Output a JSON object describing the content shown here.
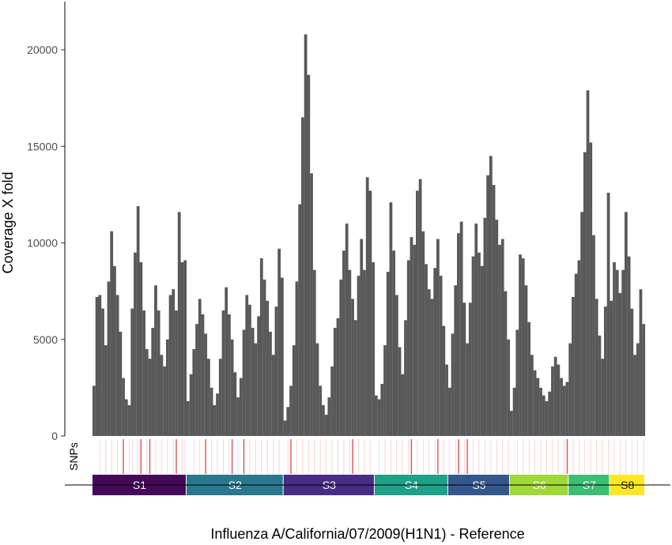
{
  "chart_data": {
    "type": "bar",
    "title": "",
    "xlabel": "Influenza A/California/07/2009(H1N1) - Reference",
    "ylabel": "Coverage X fold",
    "ylim": [
      0,
      22000
    ],
    "yticks": [
      0,
      5000,
      10000,
      15000,
      20000
    ],
    "snp_track_label": "SNPs",
    "bar_color": "#595959",
    "snp_color": "#f08080",
    "segments": [
      {
        "name": "S1",
        "color": "#440a59",
        "bin_start": 0,
        "bin_end": 32,
        "coverage": [
          2600,
          7200,
          7300,
          6600,
          4700,
          8000,
          10600,
          8800,
          7300,
          5400,
          3000,
          1900,
          1600,
          6600,
          9500,
          11900,
          9000,
          6500,
          4500,
          4000,
          5600,
          7800,
          6500,
          4200,
          3600,
          5000,
          7300,
          7600,
          6500,
          11600,
          9000,
          9100
        ]
      },
      {
        "name": "S2",
        "color": "#2a788e",
        "bin_start": 32,
        "bin_end": 65,
        "coverage": [
          1800,
          3200,
          4500,
          5800,
          7100,
          6300,
          5300,
          4000,
          2500,
          1600,
          2200,
          4000,
          6500,
          7700,
          6300,
          5000,
          3300,
          2000,
          3000,
          5500,
          7300,
          6800,
          5600,
          4800,
          6200,
          9200,
          8100,
          7000,
          5400,
          4200,
          6700,
          9700,
          8200
        ]
      },
      {
        "name": "S3",
        "color": "#482d84",
        "bin_start": 65,
        "bin_end": 96,
        "coverage": [
          800,
          1500,
          2600,
          4700,
          8000,
          12000,
          16500,
          20800,
          18700,
          13600,
          8600,
          4800,
          2600,
          1600,
          1100,
          2000,
          3600,
          5600,
          6100,
          8100,
          9600,
          11000,
          8600,
          7100,
          6000,
          8300,
          10200,
          8600,
          13400,
          12700,
          9000
        ]
      },
      {
        "name": "S4",
        "color": "#1fa088",
        "bin_start": 96,
        "bin_end": 121,
        "coverage": [
          2100,
          1900,
          2700,
          4700,
          8500,
          12100,
          9600,
          7300,
          4600,
          3200,
          6000,
          9100,
          10300,
          9900,
          12700,
          13300,
          10600,
          8900,
          7600,
          7100,
          8700,
          10200,
          8300,
          5700,
          3700
        ]
      },
      {
        "name": "S5",
        "color": "#34588c",
        "bin_start": 121,
        "bin_end": 142,
        "coverage": [
          2500,
          5300,
          7800,
          10500,
          11100,
          6900,
          4800,
          6900,
          9300,
          11000,
          9500,
          8800,
          11300,
          13500,
          14500,
          13000,
          11200,
          9900,
          10200,
          7500,
          5000
        ]
      },
      {
        "name": "S6",
        "color": "#9fd838",
        "bin_start": 142,
        "bin_end": 162,
        "coverage": [
          1300,
          2500,
          5500,
          9400,
          9200,
          7800,
          5900,
          4200,
          3400,
          3000,
          2500,
          2100,
          1800,
          2300,
          3600,
          4100,
          3700,
          3000,
          2600,
          2800
        ]
      },
      {
        "name": "S7",
        "color": "#3dbc74",
        "bin_start": 162,
        "bin_end": 176,
        "coverage": [
          4800,
          7200,
          8400,
          9100,
          11600,
          14700,
          17900,
          15200,
          10400,
          7100,
          5200,
          4000,
          6700,
          12600
        ]
      },
      {
        "name": "S8",
        "color": "#fde724",
        "bin_start": 176,
        "bin_end": 188,
        "coverage": [
          7000,
          9000,
          8600,
          7400,
          8600,
          11600,
          9300,
          6600,
          4200,
          4800,
          7600,
          5800
        ]
      }
    ],
    "snp_positions_major": [
      10,
      16,
      19,
      28,
      38,
      47,
      51,
      67,
      88,
      108,
      117,
      124,
      127,
      161
    ],
    "snp_positions_minor": [
      2,
      4,
      6,
      8,
      12,
      13,
      15,
      18,
      21,
      23,
      25,
      27,
      30,
      31,
      34,
      36,
      40,
      42,
      44,
      46,
      49,
      53,
      55,
      57,
      59,
      61,
      63,
      66,
      69,
      71,
      73,
      75,
      77,
      79,
      81,
      83,
      85,
      87,
      90,
      92,
      94,
      97,
      99,
      101,
      103,
      105,
      107,
      110,
      112,
      114,
      116,
      119,
      121,
      123,
      126,
      129,
      131,
      133,
      135,
      137,
      139,
      141,
      144,
      146,
      148,
      150,
      152,
      154,
      156,
      158,
      160,
      163,
      165,
      167,
      169,
      171,
      173,
      175,
      177,
      179,
      181,
      183,
      185,
      187
    ]
  }
}
